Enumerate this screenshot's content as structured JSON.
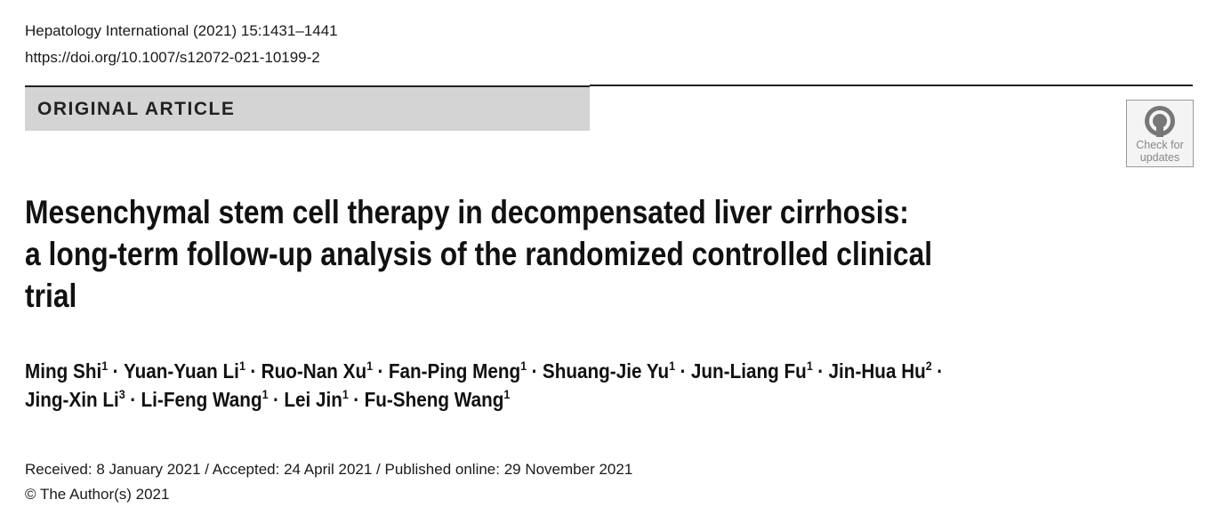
{
  "header": {
    "journal": "Hepatology International (2021) 15:1431–1441",
    "doi": "https://doi.org/10.1007/s12072-021-10199-2"
  },
  "section_label": "ORIGINAL ARTICLE",
  "badge": {
    "line1": "Check for",
    "line2": "updates"
  },
  "title_lines": [
    "Mesenchymal stem cell therapy in decompensated liver cirrhosis:",
    "a long-term follow-up analysis of the randomized controlled clinical",
    "trial"
  ],
  "authors": {
    "separator": "·",
    "lines": [
      [
        {
          "name": "Ming Shi",
          "aff": "1"
        },
        {
          "name": "Yuan-Yuan Li",
          "aff": "1"
        },
        {
          "name": "Ruo-Nan Xu",
          "aff": "1"
        },
        {
          "name": "Fan-Ping Meng",
          "aff": "1"
        },
        {
          "name": "Shuang-Jie Yu",
          "aff": "1"
        },
        {
          "name": "Jun-Liang Fu",
          "aff": "1"
        },
        {
          "name": "Jin-Hua Hu",
          "aff": "2"
        }
      ],
      [
        {
          "name": "Jing-Xin Li",
          "aff": "3"
        },
        {
          "name": "Li-Feng Wang",
          "aff": "1"
        },
        {
          "name": "Lei Jin",
          "aff": "1"
        },
        {
          "name": "Fu-Sheng Wang",
          "aff": "1"
        }
      ]
    ]
  },
  "dates": "Received: 8 January 2021 / Accepted: 24 April 2021 / Published online: 29 November 2021",
  "copyright": "© The Author(s) 2021"
}
